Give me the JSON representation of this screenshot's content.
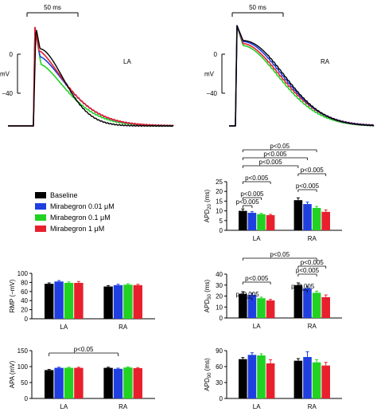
{
  "colors": {
    "baseline": "#000000",
    "m001": "#1f3fe0",
    "m01": "#22d222",
    "m1": "#e8202e"
  },
  "legend": {
    "items": [
      {
        "label": "Baseline",
        "color": "#000000"
      },
      {
        "label": "Mirabegron 0.01 μM",
        "color": "#1f3fe0"
      },
      {
        "label": "Mirabegron 0.1 μM",
        "color": "#22d222"
      },
      {
        "label": "Mirabegron 1 μM",
        "color": "#e8202e"
      }
    ]
  },
  "chart_data": [
    {
      "type": "line",
      "panel": "LA",
      "label": "LA",
      "scalebar": "50 ms",
      "ylabel": "mV",
      "yticks": [
        "0",
        "−40"
      ]
    },
    {
      "type": "line",
      "panel": "RA",
      "label": "RA",
      "scalebar": "50 ms",
      "ylabel": "mV",
      "yticks": [
        "0",
        "−40"
      ]
    },
    {
      "type": "bar",
      "id": "apd20",
      "ylabel_main": "APD",
      "ylabel_sub": "20",
      "ylabel_unit": " (ms)",
      "ylim": [
        0,
        25
      ],
      "yticks": [
        0,
        5,
        10,
        15,
        20,
        25
      ],
      "categories": [
        "LA",
        "RA"
      ],
      "series": [
        {
          "name": "Baseline",
          "values": [
            10.0,
            15.5
          ],
          "errors": [
            1.0,
            1.2
          ]
        },
        {
          "name": "Mirabegron 0.01 μM",
          "values": [
            9.0,
            13.5
          ],
          "errors": [
            0.6,
            1.0
          ]
        },
        {
          "name": "Mirabegron 0.1 μM",
          "values": [
            8.3,
            11.5
          ],
          "errors": [
            0.4,
            0.8
          ]
        },
        {
          "name": "Mirabegron 1 μM",
          "values": [
            7.8,
            9.5
          ],
          "errors": [
            0.4,
            1.0
          ]
        }
      ],
      "annotations": [
        {
          "text": "p<0.05",
          "from": [
            0,
            0
          ],
          "to": [
            1,
            2
          ]
        },
        {
          "text": "p<0.005",
          "from": [
            0,
            0
          ],
          "to": [
            1,
            1
          ]
        },
        {
          "text": "p<0.005",
          "from": [
            0,
            0
          ],
          "to": [
            1,
            0
          ]
        },
        {
          "text": "p<0.005",
          "from": [
            1,
            0
          ],
          "to": [
            1,
            3
          ]
        },
        {
          "text": "p<0.005",
          "from": [
            0,
            0
          ],
          "to": [
            0,
            3
          ]
        },
        {
          "text": "p<0.005",
          "from": [
            1,
            0
          ],
          "to": [
            1,
            2
          ]
        },
        {
          "text": "p<0.005",
          "from": [
            0,
            0
          ],
          "to": [
            0,
            2
          ]
        },
        {
          "text": "p<0.005",
          "from": [
            0,
            0
          ],
          "to": [
            0,
            1
          ]
        }
      ]
    },
    {
      "type": "bar",
      "id": "rmp",
      "ylabel_main": "RMP (−mV)",
      "ylabel_sub": "",
      "ylabel_unit": "",
      "ylim": [
        0,
        100
      ],
      "yticks": [
        0,
        20,
        40,
        60,
        80,
        100
      ],
      "categories": [
        "LA",
        "RA"
      ],
      "series": [
        {
          "name": "Baseline",
          "values": [
            77,
            71
          ],
          "errors": [
            2,
            2
          ]
        },
        {
          "name": "Mirabegron 0.01 μM",
          "values": [
            82,
            74
          ],
          "errors": [
            2,
            2
          ]
        },
        {
          "name": "Mirabegron 0.1 μM",
          "values": [
            79,
            75
          ],
          "errors": [
            2,
            2
          ]
        },
        {
          "name": "Mirabegron 1 μM",
          "values": [
            79,
            74
          ],
          "errors": [
            3,
            2
          ]
        }
      ],
      "annotations": []
    },
    {
      "type": "bar",
      "id": "apd50",
      "ylabel_main": "APD",
      "ylabel_sub": "50",
      "ylabel_unit": " (ms)",
      "ylim": [
        0,
        40
      ],
      "yticks": [
        0,
        10,
        20,
        30,
        40
      ],
      "categories": [
        "LA",
        "RA"
      ],
      "series": [
        {
          "name": "Baseline",
          "values": [
            22,
            30
          ],
          "errors": [
            2,
            2
          ]
        },
        {
          "name": "Mirabegron 0.01 μM",
          "values": [
            21,
            27
          ],
          "errors": [
            1.5,
            2
          ]
        },
        {
          "name": "Mirabegron 0.1 μM",
          "values": [
            18,
            23
          ],
          "errors": [
            1,
            1.5
          ]
        },
        {
          "name": "Mirabegron 1 μM",
          "values": [
            16,
            19
          ],
          "errors": [
            1,
            2
          ]
        }
      ],
      "annotations": [
        {
          "text": "p<0.05",
          "from": [
            0,
            0
          ],
          "to": [
            1,
            2
          ]
        },
        {
          "text": "p<0.005",
          "from": [
            1,
            0
          ],
          "to": [
            1,
            3
          ]
        },
        {
          "text": "p<0.005",
          "from": [
            1,
            0
          ],
          "to": [
            1,
            2
          ]
        },
        {
          "text": "p<0.005",
          "from": [
            0,
            0
          ],
          "to": [
            0,
            3
          ]
        },
        {
          "text": "p<0.005",
          "from": [
            1,
            0
          ],
          "to": [
            1,
            1
          ]
        },
        {
          "text": "p<0.005",
          "from": [
            0,
            0
          ],
          "to": [
            0,
            1
          ]
        }
      ]
    },
    {
      "type": "bar",
      "id": "apa",
      "ylabel_main": "APA (mV)",
      "ylabel_sub": "",
      "ylabel_unit": "",
      "ylim": [
        0,
        150
      ],
      "yticks": [
        0,
        50,
        100,
        150
      ],
      "categories": [
        "LA",
        "RA"
      ],
      "series": [
        {
          "name": "Baseline",
          "values": [
            89,
            96
          ],
          "errors": [
            2,
            2
          ]
        },
        {
          "name": "Mirabegron 0.01 μM",
          "values": [
            96,
            93
          ],
          "errors": [
            2,
            2
          ]
        },
        {
          "name": "Mirabegron 0.1 μM",
          "values": [
            96,
            97
          ],
          "errors": [
            2,
            2
          ]
        },
        {
          "name": "Mirabegron 1 μM",
          "values": [
            96,
            95
          ],
          "errors": [
            2,
            2
          ]
        }
      ],
      "annotations": [
        {
          "text": "p<0.05",
          "from": [
            0,
            0
          ],
          "to": [
            1,
            1
          ]
        }
      ]
    },
    {
      "type": "bar",
      "id": "apd90",
      "ylabel_main": "APD",
      "ylabel_sub": "90",
      "ylabel_unit": " (ms)",
      "ylim": [
        0,
        90
      ],
      "yticks": [
        0,
        30,
        60,
        90
      ],
      "categories": [
        "LA",
        "RA"
      ],
      "series": [
        {
          "name": "Baseline",
          "values": [
            74,
            71
          ],
          "errors": [
            3,
            4
          ]
        },
        {
          "name": "Mirabegron 0.01 μM",
          "values": [
            82,
            78
          ],
          "errors": [
            4,
            10
          ]
        },
        {
          "name": "Mirabegron 0.1 μM",
          "values": [
            81,
            68
          ],
          "errors": [
            3,
            5
          ]
        },
        {
          "name": "Mirabegron 1 μM",
          "values": [
            66,
            62
          ],
          "errors": [
            7,
            6
          ]
        }
      ],
      "annotations": []
    }
  ]
}
